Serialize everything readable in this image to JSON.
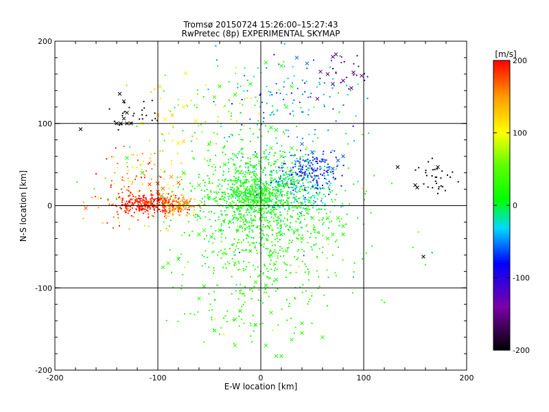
{
  "chart_data": {
    "type": "scatter",
    "title": "Tromsø 20150724 15:26:00–15:27:43",
    "subtitle": "RwPretec (8p) EXPERIMENTAL SKYMAP",
    "xlabel": "E-W location [km]",
    "ylabel": "N-S location [km]",
    "xlim": [
      -200,
      200
    ],
    "ylim": [
      -200,
      200
    ],
    "xticks": [
      -200,
      -100,
      0,
      100,
      200
    ],
    "yticks": [
      -200,
      -100,
      0,
      100,
      200
    ],
    "x_tick_labels": [
      "-200",
      "-100",
      "0",
      "100",
      "200"
    ],
    "y_tick_labels": [
      "-200",
      "-100",
      "0",
      "100",
      "200"
    ],
    "grid": true,
    "colorbar": {
      "label": "[m/s]",
      "range": [
        -200,
        200
      ],
      "ticks": [
        200,
        100,
        0,
        -100,
        -200
      ],
      "tick_labels": [
        "200",
        "100",
        "0",
        "-100",
        "-200"
      ],
      "colormap": "black-purple-blue-cyan-green-yellow-red"
    },
    "clusters": [
      {
        "name_hint": "west-red",
        "cx": -110,
        "cy": 2,
        "sx": 15,
        "sy": 6,
        "n": 300,
        "v": 190,
        "vs": 10
      },
      {
        "name_hint": "west-orange",
        "cx": -80,
        "cy": 0,
        "sx": 10,
        "sy": 5,
        "n": 130,
        "v": 150,
        "vs": 15
      },
      {
        "name_hint": "west-scatter",
        "cx": -135,
        "cy": 20,
        "sx": 20,
        "sy": 25,
        "n": 90,
        "v": 170,
        "vs": 25
      },
      {
        "name_hint": "west-yellow",
        "cx": -100,
        "cy": 35,
        "sx": 25,
        "sy": 25,
        "n": 50,
        "v": 110,
        "vs": 20
      },
      {
        "name_hint": "central-green",
        "cx": -5,
        "cy": 15,
        "sx": 30,
        "sy": 30,
        "n": 700,
        "v": 15,
        "vs": 15
      },
      {
        "name_hint": "central-dense",
        "cx": -5,
        "cy": 10,
        "sx": 12,
        "sy": 12,
        "n": 250,
        "v": 20,
        "vs": 12
      },
      {
        "name_hint": "south-green",
        "cx": 10,
        "cy": -40,
        "sx": 35,
        "sy": 35,
        "n": 350,
        "v": 25,
        "vs": 15
      },
      {
        "name_hint": "far-south",
        "cx": -10,
        "cy": -120,
        "sx": 30,
        "sy": 30,
        "n": 90,
        "v": 30,
        "vs": 10
      },
      {
        "name_hint": "east-blue",
        "cx": 50,
        "cy": 40,
        "sx": 15,
        "sy": 12,
        "n": 180,
        "v": -75,
        "vs": 20
      },
      {
        "name_hint": "east-cyan",
        "cx": 30,
        "cy": 20,
        "sx": 25,
        "sy": 20,
        "n": 200,
        "v": -25,
        "vs": 20
      },
      {
        "name_hint": "north-cyan",
        "cx": 30,
        "cy": 130,
        "sx": 35,
        "sy": 30,
        "n": 120,
        "v": -45,
        "vs": 25
      },
      {
        "name_hint": "north-yellow",
        "cx": -40,
        "cy": 120,
        "sx": 30,
        "sy": 30,
        "n": 70,
        "v": 70,
        "vs": 35
      },
      {
        "name_hint": "northwest-black",
        "cx": -125,
        "cy": 110,
        "sx": 12,
        "sy": 10,
        "n": 25,
        "v": -205,
        "vs": 5
      },
      {
        "name_hint": "northeast-purple",
        "cx": 80,
        "cy": 160,
        "sx": 10,
        "sy": 12,
        "n": 18,
        "v": -160,
        "vs": 15
      },
      {
        "name_hint": "east-black",
        "cx": 170,
        "cy": 35,
        "sx": 12,
        "sy": 8,
        "n": 30,
        "v": -200,
        "vs": 5
      },
      {
        "name_hint": "sparse-mix",
        "cx": 0,
        "cy": 0,
        "sx": 70,
        "sy": 70,
        "n": 160,
        "v": 20,
        "vs": 40
      }
    ],
    "crosses": [
      [
        -137,
        136
      ],
      [
        -133,
        127
      ],
      [
        -130,
        113
      ],
      [
        -133,
        106
      ],
      [
        -136,
        100
      ],
      [
        -130,
        100
      ],
      [
        -126,
        100
      ],
      [
        -140,
        100
      ],
      [
        -100,
        110
      ],
      [
        -86,
        110
      ],
      [
        -73,
        161
      ],
      [
        -63,
        103
      ],
      [
        -80,
        76
      ],
      [
        -75,
        78
      ],
      [
        70,
        181
      ],
      [
        73,
        184
      ],
      [
        58,
        163
      ],
      [
        65,
        160
      ],
      [
        80,
        152
      ],
      [
        90,
        162
      ],
      [
        98,
        158
      ],
      [
        70,
        148
      ],
      [
        88,
        143
      ],
      [
        55,
        130
      ],
      [
        133,
        47
      ],
      [
        150,
        25
      ],
      [
        152,
        22
      ],
      [
        172,
        47
      ],
      [
        -175,
        93
      ],
      [
        -130,
        58
      ],
      [
        -115,
        40
      ],
      [
        -108,
        26
      ],
      [
        -100,
        17
      ],
      [
        -97,
        11
      ],
      [
        -112,
        5
      ],
      [
        -87,
        35
      ],
      [
        -80,
        28
      ],
      [
        -90,
        -70
      ],
      [
        -95,
        -75
      ],
      [
        -80,
        -65
      ],
      [
        -55,
        -98
      ],
      [
        -60,
        -113
      ],
      [
        -25,
        -70
      ],
      [
        -5,
        -93
      ],
      [
        5,
        -97
      ],
      [
        15,
        -90
      ],
      [
        -20,
        -128
      ],
      [
        -25,
        -138
      ],
      [
        -5,
        -145
      ],
      [
        -45,
        -152
      ],
      [
        5,
        -170
      ],
      [
        -25,
        -170
      ],
      [
        15,
        -183
      ],
      [
        20,
        -183
      ],
      [
        40,
        -155
      ],
      [
        60,
        -160
      ],
      [
        30,
        -163
      ],
      [
        40,
        -143
      ],
      [
        10,
        -130
      ],
      [
        -60,
        25
      ],
      [
        -50,
        10
      ],
      [
        -40,
        -30
      ],
      [
        -60,
        -35
      ],
      [
        -30,
        -20
      ],
      [
        25,
        25
      ],
      [
        30,
        28
      ],
      [
        45,
        -5
      ],
      [
        50,
        -15
      ],
      [
        65,
        -40
      ],
      [
        70,
        -35
      ],
      [
        75,
        -15
      ],
      [
        80,
        -25
      ],
      [
        65,
        -15
      ],
      [
        20,
        60
      ],
      [
        10,
        70
      ],
      [
        30,
        70
      ],
      [
        -50,
        75
      ],
      [
        -35,
        50
      ],
      [
        -20,
        40
      ],
      [
        -5,
        30
      ],
      [
        60,
        55
      ],
      [
        30,
        145
      ],
      [
        25,
        120
      ],
      [
        10,
        95
      ],
      [
        15,
        92
      ],
      [
        -25,
        135
      ],
      [
        -10,
        148
      ],
      [
        -40,
        145
      ],
      [
        -45,
        132
      ],
      [
        -75,
        120
      ],
      [
        -93,
        105
      ],
      [
        -98,
        145
      ],
      [
        -115,
        100
      ],
      [
        75,
        55
      ],
      [
        80,
        60
      ],
      [
        70,
        45
      ],
      [
        -75,
        40
      ],
      [
        -5,
        60
      ],
      [
        5,
        58
      ],
      [
        -170,
        -3
      ],
      [
        -130,
        -5
      ],
      [
        158,
        -62
      ],
      [
        80,
        -35
      ],
      [
        -55,
        -30
      ],
      [
        -48,
        -38
      ],
      [
        -35,
        -58
      ],
      [
        10,
        -60
      ],
      [
        25,
        -55
      ],
      [
        40,
        -40
      ],
      [
        35,
        -30
      ],
      [
        20,
        -35
      ],
      [
        -10,
        -55
      ],
      [
        -30,
        0
      ],
      [
        -20,
        5
      ],
      [
        5,
        5
      ],
      [
        10,
        15
      ],
      [
        -15,
        30
      ],
      [
        50,
        65
      ],
      [
        40,
        75
      ],
      [
        -100,
        27
      ],
      [
        -95,
        21
      ],
      [
        20,
        170
      ],
      [
        5,
        174
      ],
      [
        35,
        180
      ],
      [
        45,
        173
      ]
    ]
  }
}
